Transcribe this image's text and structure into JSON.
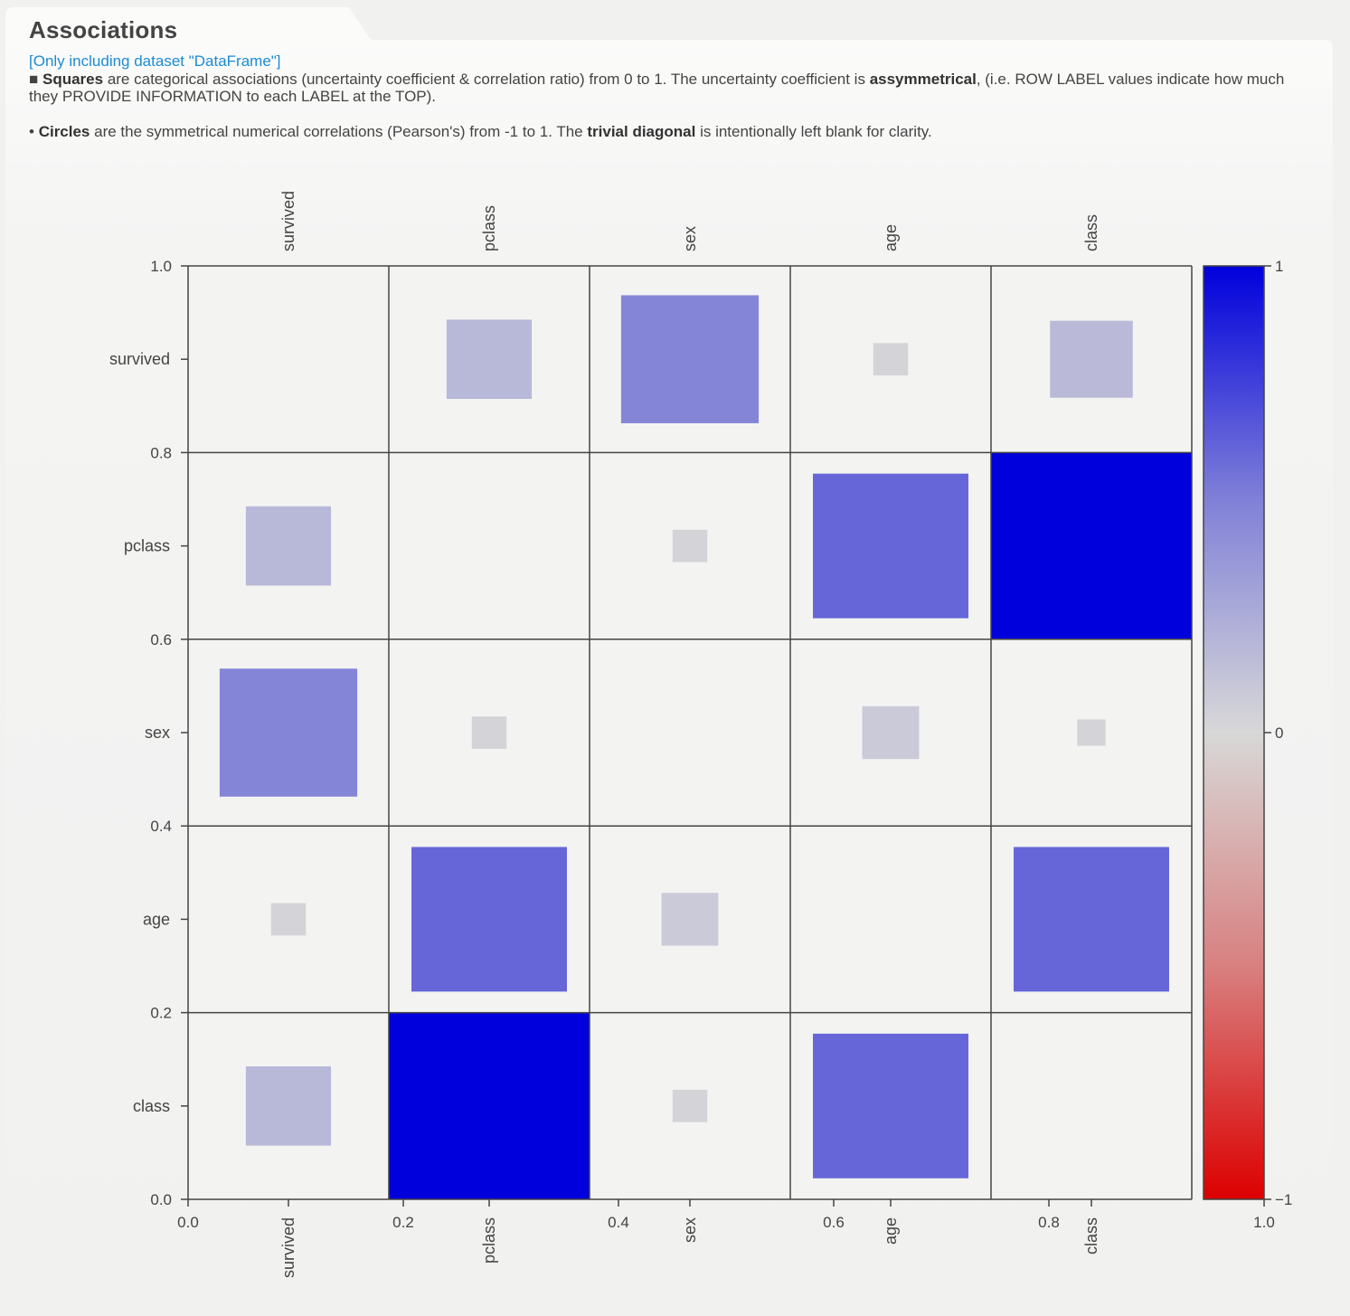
{
  "header": {
    "title": "Associations",
    "subset": "[Only including dataset \"DataFrame\"]",
    "line1_prefix": "■ ",
    "line1_b1": "Squares",
    "line1_mid": " are categorical associations (uncertainty coefficient & correlation ratio) from 0 to 1. The uncertainty coefficient is ",
    "line1_b2": "assymmetrical",
    "line1_end": ", (i.e. ROW LABEL values indicate how much they PROVIDE INFORMATION to each LABEL at the TOP).",
    "line2_prefix": "• ",
    "line2_b1": "Circles",
    "line2_mid": " are the symmetrical numerical correlations (Pearson's) from -1 to 1. The ",
    "line2_b2": "trivial diagonal",
    "line2_end": " is intentionally left blank for clarity."
  },
  "chart_data": {
    "type": "heatmap",
    "variables": [
      "survived",
      "pclass",
      "sex",
      "age",
      "class"
    ],
    "values": [
      [
        null,
        0.18,
        0.47,
        0.03,
        0.17
      ],
      [
        0.18,
        null,
        0.03,
        0.6,
        1.0
      ],
      [
        0.47,
        0.03,
        null,
        0.08,
        0.02
      ],
      [
        0.03,
        0.6,
        0.08,
        null,
        0.6
      ],
      [
        0.18,
        1.0,
        0.03,
        0.6,
        null
      ]
    ],
    "y_ticks": [
      "1.0",
      "0.8",
      "0.6",
      "0.4",
      "0.2",
      "0.0"
    ],
    "x_ticks": [
      "0.0",
      "0.2",
      "0.4",
      "0.6",
      "0.8",
      "1.0"
    ],
    "colorbar": {
      "ticks": [
        "1",
        "0",
        "−1"
      ],
      "colors": [
        "#0000dc",
        "#8080d8",
        "#d8d8d8",
        "#d88080",
        "#dc0000"
      ]
    }
  }
}
